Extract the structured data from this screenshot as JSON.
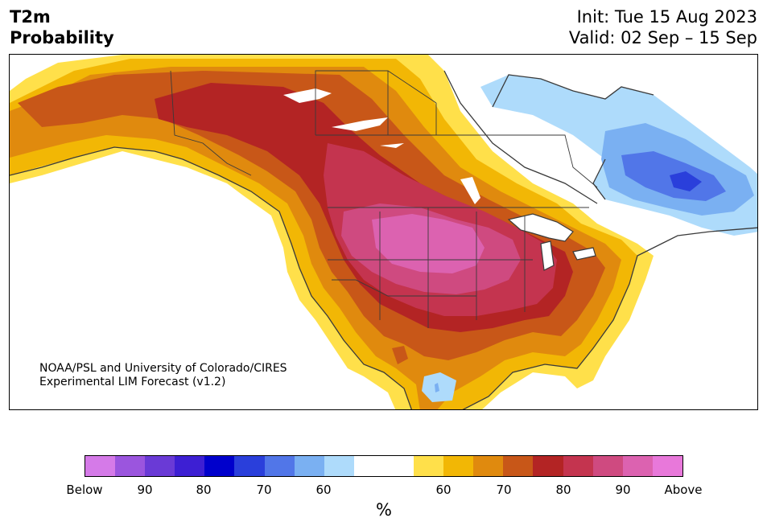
{
  "header": {
    "variable": "T2m",
    "product": "Probability",
    "init": "Init: Tue 15 Aug 2023",
    "valid": "Valid: 02 Sep – 15 Sep"
  },
  "credit": {
    "line1": "NOAA/PSL and University of Colorado/CIRES",
    "line2": "Experimental LIM Forecast (v1.2)"
  },
  "colorbar": {
    "colors": [
      "#d57ae8",
      "#9b55de",
      "#6a3ad6",
      "#3d1fd3",
      "#0000cc",
      "#2a3fdb",
      "#5176e8",
      "#7ab0f2",
      "#aedbfb",
      "#ffffff",
      "#ffffff",
      "#ffe04a",
      "#f2b705",
      "#e08a0e",
      "#c85718",
      "#b32424",
      "#c4344f",
      "#cf4a80",
      "#dc62b0",
      "#e878da"
    ],
    "tick_labels": [
      "Below",
      "90",
      "80",
      "70",
      "60",
      "60",
      "70",
      "80",
      "90",
      "Above"
    ],
    "unit": "%"
  },
  "legend_colors": {
    "outline": "#3a3a3a",
    "lakes": "#ffffff"
  }
}
